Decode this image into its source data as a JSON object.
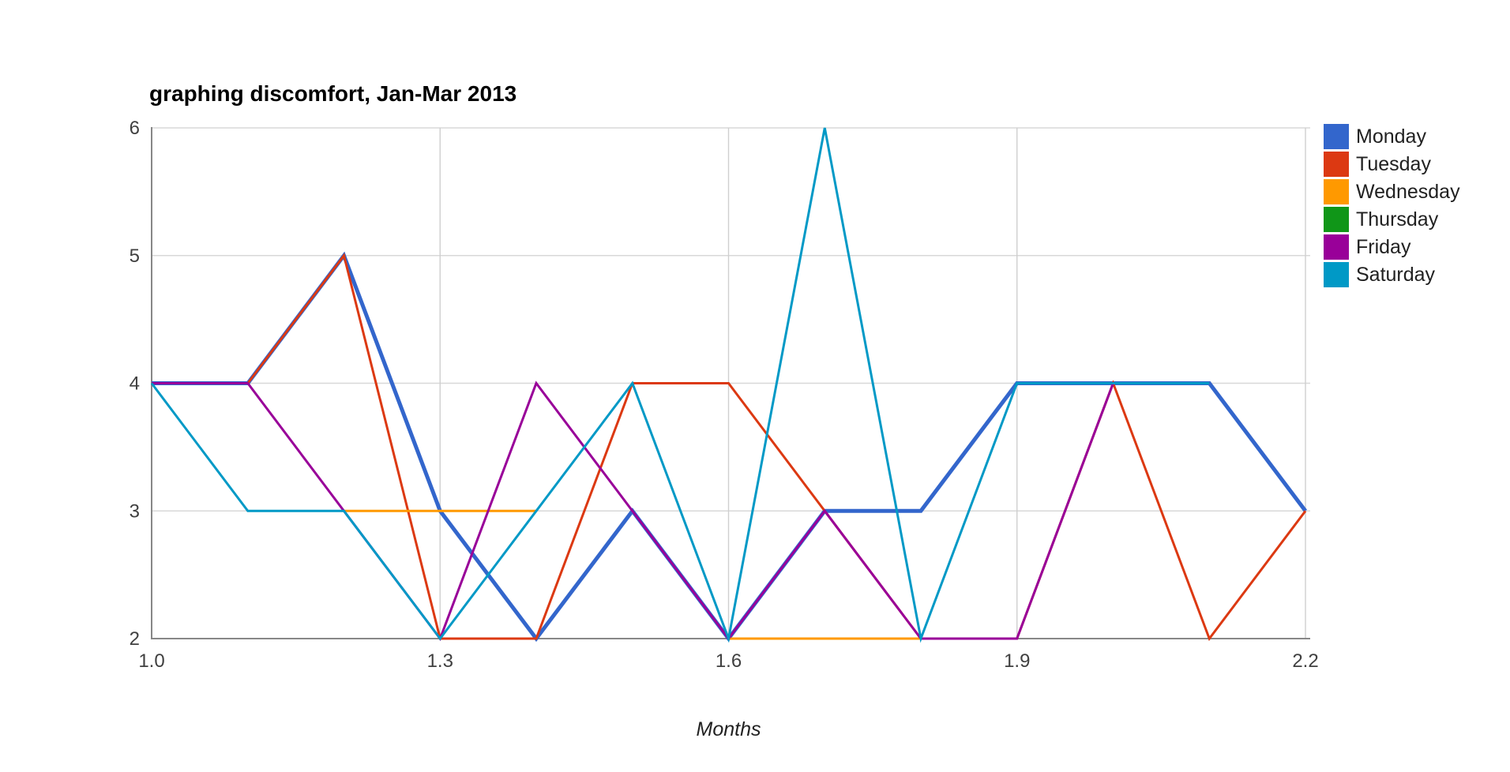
{
  "title": "graphing discomfort, Jan-Mar 2013",
  "chart_data": {
    "type": "line",
    "title": "graphing discomfort, Jan-Mar 2013",
    "xlabel": "Months",
    "ylabel": "",
    "x": [
      1.0,
      1.1,
      1.2,
      1.3,
      1.4,
      1.5,
      1.6,
      1.7,
      1.8,
      1.9,
      2.0,
      2.1,
      2.2
    ],
    "xlim": [
      1.0,
      2.2
    ],
    "ylim": [
      2,
      6
    ],
    "x_ticks": [
      1.0,
      1.3,
      1.6,
      1.9,
      2.2
    ],
    "x_tick_labels": [
      "1.0",
      "1.3",
      "1.6",
      "1.9",
      "2.2"
    ],
    "y_ticks": [
      2,
      3,
      4,
      5,
      6
    ],
    "y_tick_labels": [
      "2",
      "3",
      "4",
      "5",
      "6"
    ],
    "grid": true,
    "legend_position": "right",
    "axis_color": "#878787",
    "gridline_color": "#D8D8D8",
    "tick_label_color": "#404040",
    "series": [
      {
        "name": "Monday",
        "color": "#3366CC",
        "line_width": 5,
        "values": [
          4,
          4,
          5,
          3,
          2,
          3,
          2,
          3,
          3,
          4,
          4,
          4,
          3
        ]
      },
      {
        "name": "Tuesday",
        "color": "#DC3912",
        "line_width": 3,
        "values": [
          4,
          4,
          5,
          2,
          2,
          4,
          4,
          3,
          2,
          2,
          4,
          2,
          3
        ]
      },
      {
        "name": "Wednesday",
        "color": "#FF9900",
        "line_width": 3,
        "values": [
          null,
          null,
          3,
          3,
          3,
          null,
          2,
          2,
          2,
          null,
          null,
          null,
          null
        ]
      },
      {
        "name": "Thursday",
        "color": "#109618",
        "line_width": 3,
        "values": [
          null,
          null,
          null,
          null,
          null,
          null,
          null,
          null,
          null,
          null,
          null,
          null,
          null
        ]
      },
      {
        "name": "Friday",
        "color": "#990099",
        "line_width": 3,
        "values": [
          4,
          4,
          3,
          2,
          4,
          3,
          2,
          3,
          2,
          2,
          4,
          4,
          null
        ]
      },
      {
        "name": "Saturday",
        "color": "#0099C6",
        "line_width": 3,
        "values": [
          4,
          3,
          3,
          2,
          3,
          4,
          2,
          6,
          2,
          4,
          4,
          4,
          null
        ]
      }
    ]
  },
  "legend": {
    "items": [
      {
        "label": "Monday",
        "color": "#3366CC"
      },
      {
        "label": "Tuesday",
        "color": "#DC3912"
      },
      {
        "label": "Wednesday",
        "color": "#FF9900"
      },
      {
        "label": "Thursday",
        "color": "#109618"
      },
      {
        "label": "Friday",
        "color": "#990099"
      },
      {
        "label": "Saturday",
        "color": "#0099C6"
      }
    ]
  }
}
